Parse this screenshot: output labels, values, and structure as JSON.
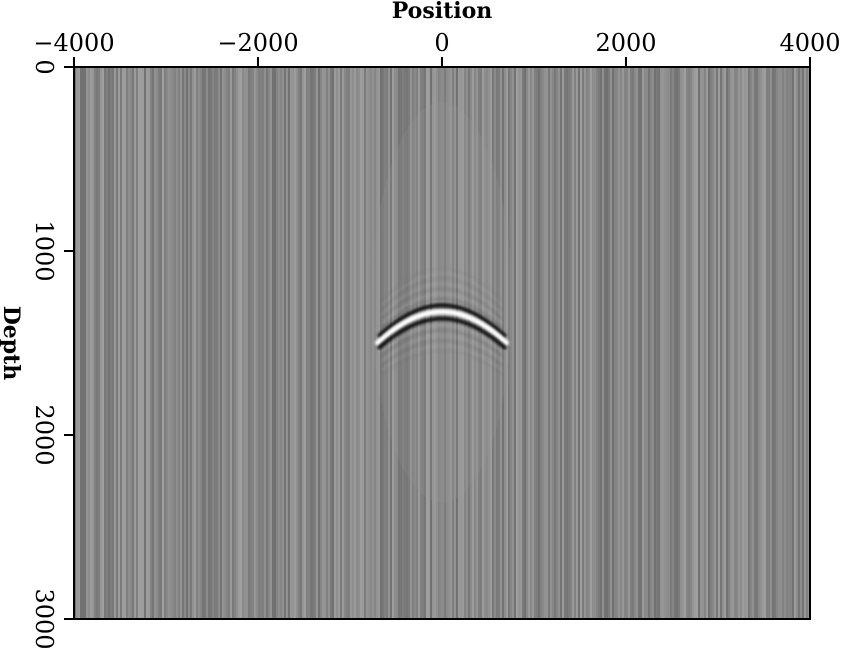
{
  "chart_data": {
    "type": "heatmap",
    "title": "",
    "xlabel": "Position",
    "ylabel": "Depth",
    "xlim": [
      -4000,
      4000
    ],
    "ylim": [
      0,
      3000
    ],
    "y_inverted": true,
    "x_axis_position": "top",
    "x_ticks": [
      -4000,
      -2000,
      0,
      2000,
      4000
    ],
    "x_tick_labels": [
      "−4000",
      "−2000",
      "0",
      "2000",
      "4000"
    ],
    "y_ticks": [
      0,
      1000,
      2000,
      3000
    ],
    "y_tick_labels": [
      "0",
      "1000",
      "2000",
      "3000"
    ],
    "colormap": "grayscale",
    "background": "vertical striping noise, gray",
    "feature": {
      "type": "diffraction hyperbola",
      "apex_position": 0,
      "apex_depth": 1330,
      "extent_position": [
        -700,
        700
      ]
    },
    "grid": false,
    "colors": {
      "base_gray": "#808080",
      "event_bright": "#ffffff",
      "event_dark": "#000000"
    }
  }
}
